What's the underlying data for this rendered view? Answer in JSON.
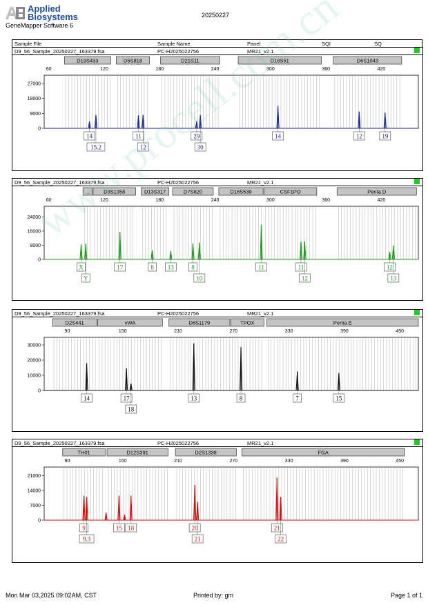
{
  "header": {
    "brand_line1": "Applied",
    "brand_line2": "Biosystems",
    "software": "GeneMapper Software 6",
    "date": "20250227"
  },
  "columns": {
    "file": "Sample File",
    "name": "Sample Name",
    "panel": "Panel",
    "sqi": "SQI",
    "sq": "SQ"
  },
  "footer": {
    "left": "Mon Mar 03,2025 09:02AM, CST",
    "center": "Printed by: gm",
    "right": "Page 1 of 1"
  },
  "watermark": "www.procell.com.cn",
  "chart_data": [
    {
      "type": "line",
      "file": "D9_56_Sample_20250227_163379.fsa",
      "sample": "PC-H2025022756",
      "panel": "MR21_v2.1",
      "color": "#1a2a8a",
      "xlim": [
        55,
        460
      ],
      "xticks": [
        60,
        120,
        180,
        240,
        300,
        360,
        420
      ],
      "ylim": [
        0,
        32000
      ],
      "yticks": [
        0,
        9000,
        18000,
        27000
      ],
      "markers": [
        {
          "name": "D19S433",
          "from": 77,
          "to": 127
        },
        {
          "name": "D5S818",
          "from": 133,
          "to": 169
        },
        {
          "name": "D21S11",
          "from": 181,
          "to": 245
        },
        {
          "name": "D18S51",
          "from": 265,
          "to": 355
        },
        {
          "name": "D6S1043",
          "from": 368,
          "to": 442
        }
      ],
      "peaks": [
        {
          "x": 104,
          "y": 4200
        },
        {
          "x": 111,
          "y": 8000
        },
        {
          "x": 157,
          "y": 7800
        },
        {
          "x": 162,
          "y": 8100
        },
        {
          "x": 220,
          "y": 4200
        },
        {
          "x": 224,
          "y": 8000
        },
        {
          "x": 308,
          "y": 13500
        },
        {
          "x": 396,
          "y": 10000
        },
        {
          "x": 424,
          "y": 9400
        }
      ],
      "alleles": [
        {
          "x": 104,
          "row": 1,
          "label": "14"
        },
        {
          "x": 111,
          "row": 2,
          "label": "15.2"
        },
        {
          "x": 157,
          "row": 1,
          "label": "11"
        },
        {
          "x": 162,
          "row": 2,
          "label": "12"
        },
        {
          "x": 220,
          "row": 1,
          "label": "29"
        },
        {
          "x": 224,
          "row": 2,
          "label": "30"
        },
        {
          "x": 308,
          "row": 1,
          "label": "14"
        },
        {
          "x": 396,
          "row": 1,
          "label": "12"
        },
        {
          "x": 424,
          "row": 1,
          "label": "19"
        }
      ]
    },
    {
      "type": "line",
      "file": "D9_56_Sample_20250227_163379.fsa",
      "sample": "PC-H2025022756",
      "panel": "MR21_v2.1",
      "color": "#1c9a1c",
      "xlim": [
        55,
        460
      ],
      "xticks": [
        60,
        120,
        180,
        240,
        300,
        360,
        420
      ],
      "ylim": [
        0,
        30000
      ],
      "yticks": [
        0,
        8000,
        16000,
        24000
      ],
      "markers": [
        {
          "name": "...",
          "from": 97,
          "to": 107
        },
        {
          "name": "D3S1358",
          "from": 108,
          "to": 154
        },
        {
          "name": "D13S317",
          "from": 160,
          "to": 190
        },
        {
          "name": "D7S820",
          "from": 194,
          "to": 238
        },
        {
          "name": "D16S539",
          "from": 244,
          "to": 292
        },
        {
          "name": "CSF1PO",
          "from": 293,
          "to": 350
        },
        {
          "name": "Penta D",
          "from": 372,
          "to": 458
        }
      ],
      "peaks": [
        {
          "x": 95,
          "y": 8500
        },
        {
          "x": 100,
          "y": 8800
        },
        {
          "x": 137,
          "y": 15500
        },
        {
          "x": 172,
          "y": 5200
        },
        {
          "x": 192,
          "y": 4800
        },
        {
          "x": 216,
          "y": 9000
        },
        {
          "x": 223,
          "y": 9500
        },
        {
          "x": 290,
          "y": 19500
        },
        {
          "x": 333,
          "y": 10000
        },
        {
          "x": 337,
          "y": 10200
        },
        {
          "x": 429,
          "y": 4200
        },
        {
          "x": 433,
          "y": 7800
        }
      ],
      "alleles": [
        {
          "x": 95,
          "row": 1,
          "label": "X"
        },
        {
          "x": 100,
          "row": 2,
          "label": "Y"
        },
        {
          "x": 137,
          "row": 1,
          "label": "17"
        },
        {
          "x": 172,
          "row": 1,
          "label": "8"
        },
        {
          "x": 192,
          "row": 1,
          "label": "13"
        },
        {
          "x": 216,
          "row": 1,
          "label": "8"
        },
        {
          "x": 223,
          "row": 2,
          "label": "10"
        },
        {
          "x": 290,
          "row": 1,
          "label": "11"
        },
        {
          "x": 333,
          "row": 1,
          "label": "11"
        },
        {
          "x": 337,
          "row": 2,
          "label": "12"
        },
        {
          "x": 429,
          "row": 1,
          "label": "12"
        },
        {
          "x": 433,
          "row": 2,
          "label": "13"
        }
      ]
    },
    {
      "type": "line",
      "file": "D9_56_Sample_20250227_163379.fsa",
      "sample": "PC-H2025022756",
      "panel": "MR21_v2.1",
      "color": "#111111",
      "xlim": [
        65,
        470
      ],
      "xticks": [
        90,
        150,
        210,
        270,
        330,
        390,
        450
      ],
      "ylim": [
        0,
        35000
      ],
      "yticks": [
        0,
        10000,
        20000,
        30000
      ],
      "markers": [
        {
          "name": "D2S441",
          "from": 74,
          "to": 122
        },
        {
          "name": "vWA",
          "from": 123,
          "to": 193
        },
        {
          "name": "D8S1179",
          "from": 200,
          "to": 266
        },
        {
          "name": "TPOX",
          "from": 267,
          "to": 303
        },
        {
          "name": "Penta E",
          "from": 306,
          "to": 470
        }
      ],
      "peaks": [
        {
          "x": 111,
          "y": 18000
        },
        {
          "x": 154,
          "y": 14500
        },
        {
          "x": 159,
          "y": 4500
        },
        {
          "x": 227,
          "y": 31000
        },
        {
          "x": 278,
          "y": 28500
        },
        {
          "x": 339,
          "y": 12500
        },
        {
          "x": 384,
          "y": 11500
        }
      ],
      "alleles": [
        {
          "x": 111,
          "row": 1,
          "label": "14"
        },
        {
          "x": 154,
          "row": 1,
          "label": "17"
        },
        {
          "x": 159,
          "row": 2,
          "label": "18"
        },
        {
          "x": 227,
          "row": 1,
          "label": "13"
        },
        {
          "x": 278,
          "row": 1,
          "label": "8"
        },
        {
          "x": 339,
          "row": 1,
          "label": "7"
        },
        {
          "x": 384,
          "row": 1,
          "label": "15"
        }
      ]
    },
    {
      "type": "line",
      "file": "D9_56_Sample_20250227_163379.fsa",
      "sample": "PC-H2025022756",
      "panel": "MR21_v2.1",
      "color": "#cc1111",
      "xlim": [
        65,
        470
      ],
      "xticks": [
        90,
        150,
        210,
        270,
        330,
        390,
        450
      ],
      "ylim": [
        0,
        25000
      ],
      "yticks": [
        0,
        7000,
        14000,
        21000
      ],
      "markers": [
        {
          "name": "TH01",
          "from": 85,
          "to": 131
        },
        {
          "name": "D12S391",
          "from": 133,
          "to": 199
        },
        {
          "name": "D2S1338",
          "from": 207,
          "to": 273
        },
        {
          "name": "FGA",
          "from": 279,
          "to": 455
        }
      ],
      "peaks": [
        {
          "x": 108,
          "y": 11500
        },
        {
          "x": 111,
          "y": 11000
        },
        {
          "x": 132,
          "y": 3500
        },
        {
          "x": 146,
          "y": 11500
        },
        {
          "x": 152,
          "y": 2500
        },
        {
          "x": 159,
          "y": 11500
        },
        {
          "x": 228,
          "y": 16500
        },
        {
          "x": 231,
          "y": 8500
        },
        {
          "x": 317,
          "y": 20000
        },
        {
          "x": 321,
          "y": 11000
        }
      ],
      "alleles": [
        {
          "x": 108,
          "row": 1,
          "label": "9"
        },
        {
          "x": 111,
          "row": 2,
          "label": "9.3"
        },
        {
          "x": 146,
          "row": 1,
          "label": "15"
        },
        {
          "x": 159,
          "row": 1,
          "label": "18"
        },
        {
          "x": 228,
          "row": 1,
          "label": "20"
        },
        {
          "x": 231,
          "row": 2,
          "label": "21"
        },
        {
          "x": 317,
          "row": 1,
          "label": "21"
        },
        {
          "x": 321,
          "row": 2,
          "label": "22"
        }
      ]
    }
  ]
}
